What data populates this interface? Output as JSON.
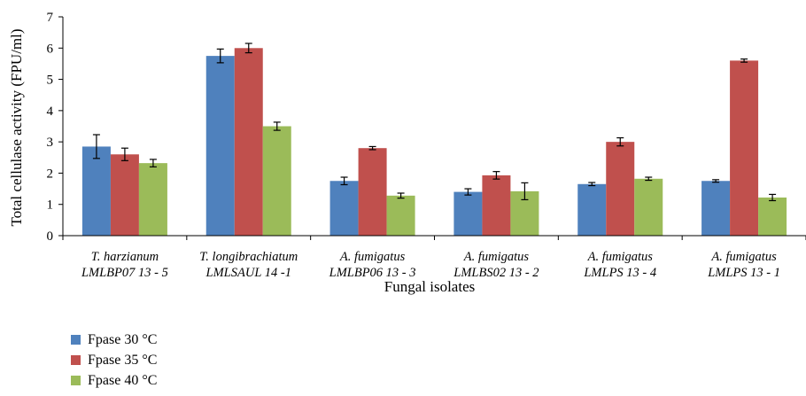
{
  "chart_data": {
    "type": "bar",
    "ylabel": "Total cellulase activity (FPU/ml)",
    "xlabel": "Fungal isolates",
    "ylim": [
      0,
      7
    ],
    "yticks": [
      0,
      1,
      2,
      3,
      4,
      5,
      6,
      7
    ],
    "categories": [
      {
        "line1": "T. harzianum",
        "line2": "LMLBP07 13 - 5"
      },
      {
        "line1": "T. longibrachiatum",
        "line2": "LMLSAUL 14 -1"
      },
      {
        "line1": "A. fumigatus",
        "line2": "LMLBP06 13 - 3"
      },
      {
        "line1": "A. fumigatus",
        "line2": "LMLBS02 13 - 2"
      },
      {
        "line1": "A. fumigatus",
        "line2": "LMLPS 13 - 4"
      },
      {
        "line1": "A. fumigatus",
        "line2": "LMLPS 13 - 1"
      }
    ],
    "series": [
      {
        "name": "Fpase 30 °C",
        "color": "#4f81bd",
        "values": [
          2.85,
          5.75,
          1.75,
          1.4,
          1.65,
          1.75
        ],
        "errors": [
          0.38,
          0.22,
          0.12,
          0.1,
          0.05,
          0.04
        ]
      },
      {
        "name": "Fpase 35 °C",
        "color": "#c0504d",
        "values": [
          2.6,
          6.0,
          2.8,
          1.93,
          3.0,
          5.6
        ],
        "errors": [
          0.2,
          0.15,
          0.05,
          0.12,
          0.13,
          0.05
        ]
      },
      {
        "name": "Fpase 40 °C",
        "color": "#9bbb59",
        "values": [
          2.32,
          3.5,
          1.28,
          1.42,
          1.82,
          1.22
        ],
        "errors": [
          0.12,
          0.13,
          0.08,
          0.27,
          0.05,
          0.1
        ]
      }
    ],
    "legend_position": "bottom-left",
    "grid": false
  }
}
